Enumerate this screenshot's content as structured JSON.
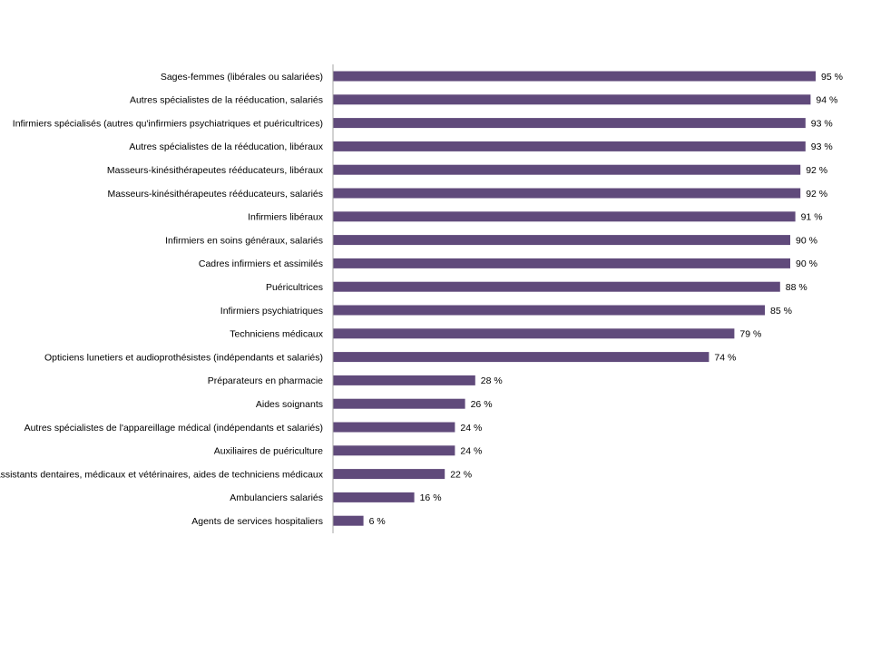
{
  "chart_data": {
    "type": "bar",
    "orientation": "horizontal",
    "title": "",
    "xlabel": "",
    "ylabel": "",
    "xlim": [
      0,
      100
    ],
    "grid": false,
    "legend": "none",
    "value_suffix": " %",
    "bar_color": "#604A7B",
    "axis_color": "#A6A6A6",
    "categories": [
      "Sages-femmes (libérales ou salariées)",
      "Autres spécialistes de la rééducation, salariés",
      "Infirmiers spécialisés (autres qu'infirmiers psychiatriques et puéricultrices)",
      "Autres spécialistes de la rééducation, libéraux",
      "Masseurs-kinésithérapeutes rééducateurs, libéraux",
      "Masseurs-kinésithérapeutes rééducateurs, salariés",
      "Infirmiers libéraux",
      "Infirmiers en soins généraux, salariés",
      "Cadres infirmiers et assimilés",
      "Puéricultrices",
      "Infirmiers psychiatriques",
      "Techniciens médicaux",
      "Opticiens lunetiers et audioprothésistes (indépendants et salariés)",
      "Préparateurs en pharmacie",
      "Aides soignants",
      "Autres spécialistes de l'appareillage médical (indépendants et salariés)",
      "Auxiliaires de puériculture",
      "Assistants dentaires, médicaux et vétérinaires, aides de techniciens médicaux",
      "Ambulanciers salariés",
      "Agents de services hospitaliers"
    ],
    "values": [
      95,
      94,
      93,
      93,
      92,
      92,
      91,
      90,
      90,
      88,
      85,
      79,
      74,
      28,
      26,
      24,
      24,
      22,
      16,
      6
    ],
    "data_labels": [
      "95 %",
      "94 %",
      "93 %",
      "93 %",
      "92 %",
      "92 %",
      "91 %",
      "90 %",
      "90 %",
      "88 %",
      "85 %",
      "79 %",
      "74 %",
      "28 %",
      "26 %",
      "24 %",
      "24 %",
      "22 %",
      "16 %",
      "6 %"
    ]
  }
}
